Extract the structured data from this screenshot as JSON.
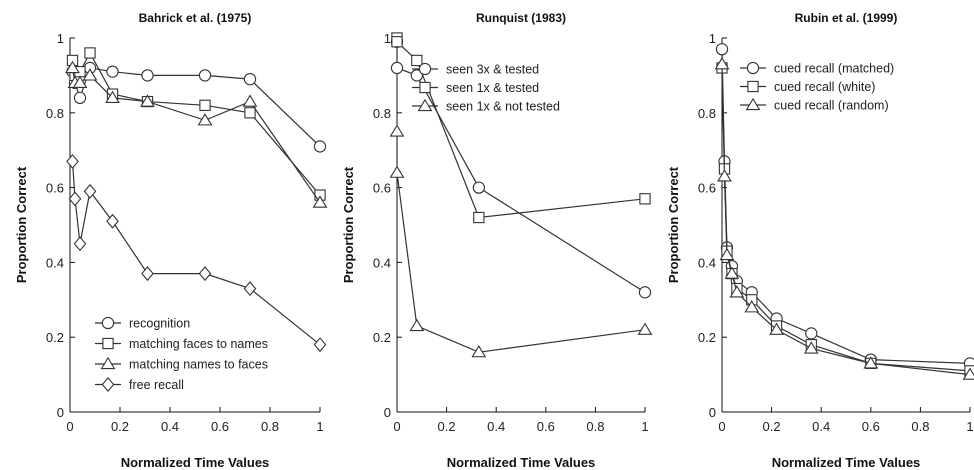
{
  "chart_data": [
    {
      "type": "line",
      "title": "Bahrick et al. (1975)",
      "xlabel": "Normalized Time Values",
      "ylabel": "Proportion Correct",
      "xlim": [
        0,
        1
      ],
      "ylim": [
        0,
        1
      ],
      "xticks": [
        0,
        0.2,
        0.4,
        0.6,
        0.8,
        1
      ],
      "xtick_labels": [
        "0",
        "0.2",
        "0.4",
        "0.6",
        "0.8",
        "1"
      ],
      "yticks": [
        0,
        0.2,
        0.4,
        0.6,
        0.8,
        1
      ],
      "ytick_labels": [
        "0",
        "0.2",
        "0.4",
        "0.6",
        "0.8",
        "1"
      ],
      "grid": false,
      "legend_position": "bottom-left",
      "series": [
        {
          "name": "recognition",
          "marker": "circle",
          "x": [
            0.01,
            0.02,
            0.04,
            0.08,
            0.17,
            0.31,
            0.54,
            0.72,
            1.0
          ],
          "y": [
            0.91,
            0.88,
            0.84,
            0.92,
            0.91,
            0.9,
            0.9,
            0.89,
            0.71
          ]
        },
        {
          "name": "matching faces to names",
          "marker": "square",
          "x": [
            0.01,
            0.02,
            0.04,
            0.08,
            0.17,
            0.31,
            0.54,
            0.72,
            1.0
          ],
          "y": [
            0.94,
            0.9,
            0.91,
            0.96,
            0.85,
            0.83,
            0.82,
            0.8,
            0.58
          ]
        },
        {
          "name": "matching names to faces",
          "marker": "triangle",
          "x": [
            0.01,
            0.02,
            0.04,
            0.08,
            0.17,
            0.31,
            0.54,
            0.72,
            1.0
          ],
          "y": [
            0.92,
            0.88,
            0.88,
            0.9,
            0.84,
            0.83,
            0.78,
            0.83,
            0.56
          ]
        },
        {
          "name": "free recall",
          "marker": "diamond",
          "x": [
            0.01,
            0.02,
            0.04,
            0.08,
            0.17,
            0.31,
            0.54,
            0.72,
            1.0
          ],
          "y": [
            0.67,
            0.57,
            0.45,
            0.59,
            0.51,
            0.37,
            0.37,
            0.33,
            0.18
          ]
        }
      ]
    },
    {
      "type": "line",
      "title": "Runquist (1983)",
      "xlabel": "Normalized Time Values",
      "ylabel": "Proportion Correct",
      "xlim": [
        0,
        1
      ],
      "ylim": [
        0,
        1
      ],
      "xticks": [
        0,
        0.2,
        0.4,
        0.6,
        0.8,
        1
      ],
      "xtick_labels": [
        "0",
        "0.2",
        "0.4",
        "0.6",
        "0.8",
        "1"
      ],
      "yticks": [
        0,
        0.2,
        0.4,
        0.6,
        0.8,
        1
      ],
      "ytick_labels": [
        "0",
        "0.2",
        "0.4",
        "0.6",
        "0.8",
        "1"
      ],
      "grid": false,
      "legend_position": "top-right",
      "series": [
        {
          "name": "seen 3x & tested",
          "marker": "circle",
          "x": [
            0.0,
            0.0,
            0.08,
            0.33,
            1.0
          ],
          "y": [
            0.99,
            0.92,
            0.9,
            0.6,
            0.32
          ]
        },
        {
          "name": "seen 1x & tested",
          "marker": "square",
          "x": [
            0.0,
            0.0,
            0.08,
            0.33,
            1.0
          ],
          "y": [
            1.0,
            0.99,
            0.94,
            0.52,
            0.57
          ]
        },
        {
          "name": "seen 1x & not tested",
          "marker": "triangle",
          "x": [
            0.0,
            0.0,
            0.08,
            0.33,
            1.0
          ],
          "y": [
            0.75,
            0.64,
            0.23,
            0.16,
            0.22
          ]
        }
      ]
    },
    {
      "type": "line",
      "title": "Rubin et al. (1999)",
      "xlabel": "Normalized Time Values",
      "ylabel": "Proportion Correct",
      "xlim": [
        0,
        1
      ],
      "ylim": [
        0,
        1
      ],
      "xticks": [
        0,
        0.2,
        0.4,
        0.6,
        0.8,
        1
      ],
      "xtick_labels": [
        "0",
        "0.2",
        "0.4",
        "0.6",
        "0.8",
        "1"
      ],
      "yticks": [
        0,
        0.2,
        0.4,
        0.6,
        0.8,
        1
      ],
      "ytick_labels": [
        "0",
        "0.2",
        "0.4",
        "0.6",
        "0.8",
        "1"
      ],
      "grid": false,
      "legend_position": "top-right",
      "series": [
        {
          "name": "cued recall (matched)",
          "marker": "circle",
          "x": [
            0.0,
            0.01,
            0.02,
            0.04,
            0.06,
            0.12,
            0.22,
            0.36,
            0.6,
            1.0
          ],
          "y": [
            0.97,
            0.67,
            0.44,
            0.39,
            0.35,
            0.32,
            0.25,
            0.21,
            0.14,
            0.13
          ]
        },
        {
          "name": "cued recall (white)",
          "marker": "square",
          "x": [
            0.0,
            0.01,
            0.02,
            0.04,
            0.06,
            0.12,
            0.22,
            0.36,
            0.6,
            1.0
          ],
          "y": [
            0.92,
            0.65,
            0.43,
            0.37,
            0.33,
            0.3,
            0.23,
            0.18,
            0.13,
            0.11
          ]
        },
        {
          "name": "cued recall (random)",
          "marker": "triangle",
          "x": [
            0.0,
            0.01,
            0.02,
            0.04,
            0.06,
            0.12,
            0.22,
            0.36,
            0.6,
            1.0
          ],
          "y": [
            0.93,
            0.63,
            0.42,
            0.37,
            0.32,
            0.28,
            0.22,
            0.17,
            0.13,
            0.1
          ]
        }
      ]
    }
  ]
}
